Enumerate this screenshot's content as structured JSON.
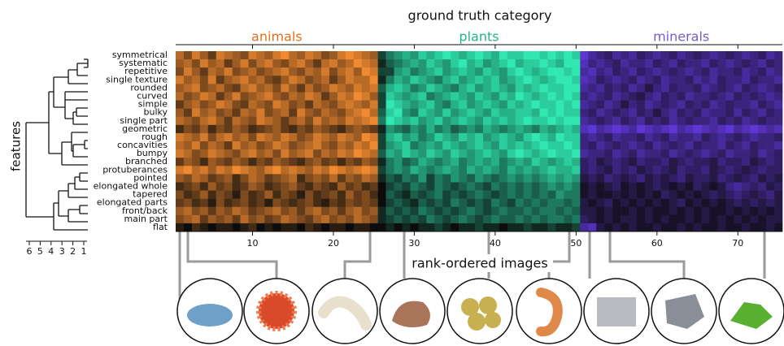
{
  "chart_data": {
    "type": "heatmap",
    "title": "ground truth category",
    "xlabel": "rank-ordered images",
    "ylabel": "features",
    "groups": [
      {
        "name": "animals",
        "color": "#f08a30",
        "label_color": "#e07020",
        "range": [
          0.5,
          25.5
        ]
      },
      {
        "name": "plants",
        "color": "#30e8b0",
        "label_color": "#1fb48c",
        "range": [
          25.5,
          50.5
        ]
      },
      {
        "name": "minerals",
        "color": "#6a3cf0",
        "label_color": "#7a5cc8",
        "range": [
          50.5,
          75.5
        ]
      }
    ],
    "xlim": [
      0.5,
      75.5
    ],
    "xticks": [
      10,
      20,
      30,
      40,
      50,
      60,
      70
    ],
    "rows": [
      "symmetrical",
      "systematic",
      "repetitive",
      "single texture",
      "rounded",
      "curved",
      "simple",
      "bulky",
      "single part",
      "geometric",
      "rough",
      "concavities",
      "bumpy",
      "branched",
      "protuberances",
      "pointed",
      "elongated whole",
      "tapered",
      "elongated parts",
      "front/back",
      "main part",
      "flat"
    ],
    "dendrogram": {
      "xlim": [
        6,
        1
      ],
      "xticks": [
        6,
        5,
        4,
        3,
        2,
        1
      ]
    },
    "values": [
      [
        7,
        5,
        8,
        6,
        4,
        8,
        7,
        6,
        5,
        8,
        7,
        6,
        8,
        9,
        7,
        6,
        8,
        7,
        5,
        6,
        8,
        9,
        8,
        7,
        6,
        3,
        5,
        6,
        7,
        6,
        8,
        7,
        8,
        9,
        8,
        7,
        8,
        9,
        8,
        7,
        9,
        8,
        8,
        9,
        9,
        8,
        9,
        8,
        9,
        8,
        8,
        6,
        5,
        4,
        6,
        5,
        6,
        4,
        5,
        6,
        5,
        4,
        6,
        5,
        4,
        5,
        6,
        5,
        4,
        5,
        6,
        5,
        4,
        6,
        5
      ],
      [
        6,
        7,
        5,
        8,
        6,
        7,
        4,
        6,
        8,
        5,
        7,
        8,
        6,
        5,
        7,
        8,
        6,
        4,
        7,
        8,
        6,
        7,
        9,
        8,
        7,
        2,
        4,
        5,
        6,
        7,
        6,
        8,
        7,
        6,
        8,
        9,
        7,
        8,
        6,
        7,
        8,
        9,
        7,
        8,
        8,
        9,
        8,
        7,
        9,
        9,
        7,
        5,
        6,
        5,
        4,
        6,
        5,
        5,
        6,
        4,
        5,
        6,
        4,
        5,
        5,
        6,
        4,
        5,
        6,
        5,
        4,
        5,
        6,
        4,
        5
      ],
      [
        5,
        8,
        6,
        4,
        7,
        6,
        8,
        5,
        6,
        7,
        5,
        6,
        7,
        8,
        6,
        5,
        7,
        6,
        8,
        5,
        7,
        8,
        6,
        9,
        8,
        3,
        3,
        6,
        7,
        5,
        6,
        7,
        8,
        6,
        7,
        8,
        7,
        6,
        8,
        7,
        6,
        8,
        9,
        8,
        7,
        8,
        9,
        9,
        8,
        9,
        6,
        7,
        5,
        6,
        4,
        5,
        6,
        4,
        5,
        6,
        5,
        4,
        5,
        6,
        5,
        4,
        6,
        5,
        5,
        4,
        6,
        5,
        4,
        6,
        5
      ],
      [
        8,
        6,
        7,
        5,
        8,
        4,
        6,
        7,
        8,
        6,
        7,
        5,
        4,
        6,
        8,
        7,
        5,
        6,
        7,
        4,
        6,
        8,
        7,
        7,
        9,
        2,
        5,
        7,
        6,
        8,
        7,
        6,
        5,
        7,
        8,
        6,
        7,
        8,
        7,
        8,
        6,
        7,
        8,
        9,
        8,
        7,
        8,
        9,
        9,
        8,
        7,
        6,
        4,
        5,
        6,
        5,
        4,
        6,
        5,
        4,
        6,
        5,
        5,
        4,
        6,
        5,
        6,
        4,
        5,
        5,
        6,
        4,
        5,
        5,
        6
      ],
      [
        6,
        7,
        8,
        5,
        6,
        7,
        5,
        4,
        7,
        8,
        6,
        7,
        5,
        8,
        6,
        4,
        7,
        5,
        6,
        8,
        7,
        6,
        8,
        7,
        8,
        4,
        7,
        8,
        7,
        5,
        6,
        8,
        7,
        6,
        5,
        7,
        8,
        6,
        7,
        8,
        7,
        6,
        8,
        7,
        8,
        9,
        8,
        8,
        9,
        9,
        6,
        5,
        6,
        4,
        5,
        4,
        6,
        5,
        3,
        5,
        6,
        4,
        5,
        5,
        4,
        6,
        5,
        4,
        5,
        6,
        4,
        5,
        6,
        5,
        4
      ],
      [
        7,
        5,
        6,
        8,
        7,
        4,
        6,
        8,
        5,
        6,
        7,
        8,
        6,
        5,
        7,
        6,
        8,
        7,
        4,
        6,
        8,
        7,
        9,
        8,
        6,
        3,
        8,
        7,
        6,
        7,
        8,
        5,
        6,
        7,
        8,
        7,
        6,
        8,
        7,
        6,
        8,
        7,
        9,
        8,
        7,
        8,
        9,
        8,
        9,
        8,
        5,
        6,
        5,
        4,
        6,
        5,
        4,
        3,
        5,
        6,
        4,
        5,
        4,
        6,
        5,
        5,
        4,
        5,
        6,
        4,
        5,
        4,
        5,
        6,
        5
      ],
      [
        4,
        6,
        7,
        5,
        6,
        8,
        7,
        5,
        4,
        7,
        6,
        5,
        8,
        7,
        5,
        6,
        4,
        7,
        6,
        5,
        7,
        8,
        7,
        6,
        8,
        3,
        9,
        8,
        7,
        6,
        7,
        8,
        6,
        5,
        7,
        8,
        6,
        7,
        8,
        7,
        6,
        8,
        7,
        8,
        9,
        8,
        8,
        9,
        8,
        9,
        6,
        5,
        4,
        6,
        5,
        3,
        5,
        4,
        6,
        5,
        4,
        5,
        6,
        4,
        5,
        4,
        6,
        5,
        4,
        5,
        5,
        6,
        4,
        5,
        6
      ],
      [
        6,
        4,
        8,
        6,
        7,
        5,
        6,
        4,
        7,
        6,
        8,
        5,
        6,
        7,
        4,
        8,
        6,
        5,
        7,
        6,
        5,
        7,
        8,
        9,
        7,
        4,
        8,
        9,
        6,
        5,
        8,
        7,
        6,
        8,
        6,
        7,
        8,
        7,
        6,
        8,
        7,
        7,
        8,
        8,
        7,
        9,
        8,
        9,
        8,
        8,
        5,
        4,
        6,
        5,
        4,
        5,
        6,
        4,
        5,
        3,
        5,
        6,
        4,
        5,
        4,
        6,
        5,
        5,
        4,
        6,
        4,
        5,
        6,
        4,
        5
      ],
      [
        7,
        6,
        5,
        7,
        8,
        6,
        4,
        7,
        6,
        5,
        8,
        7,
        6,
        4,
        6,
        7,
        5,
        8,
        6,
        7,
        6,
        8,
        7,
        8,
        9,
        5,
        9,
        8,
        7,
        8,
        6,
        7,
        8,
        6,
        7,
        8,
        7,
        6,
        8,
        7,
        8,
        7,
        8,
        9,
        8,
        8,
        9,
        8,
        9,
        9,
        6,
        5,
        4,
        5,
        6,
        4,
        5,
        6,
        4,
        5,
        4,
        6,
        5,
        4,
        5,
        5,
        6,
        4,
        5,
        4,
        6,
        5,
        4,
        5,
        5
      ],
      [
        3,
        5,
        4,
        6,
        3,
        5,
        4,
        6,
        5,
        3,
        4,
        5,
        6,
        4,
        3,
        5,
        4,
        6,
        5,
        4,
        3,
        5,
        6,
        5,
        4,
        2,
        6,
        5,
        4,
        6,
        5,
        7,
        5,
        6,
        4,
        5,
        6,
        5,
        7,
        6,
        5,
        6,
        7,
        6,
        5,
        7,
        6,
        7,
        8,
        7,
        7,
        8,
        6,
        7,
        8,
        7,
        6,
        8,
        7,
        6,
        7,
        8,
        6,
        7,
        8,
        7,
        6,
        7,
        8,
        6,
        7,
        8,
        7,
        6,
        7
      ],
      [
        8,
        7,
        6,
        8,
        5,
        7,
        8,
        6,
        7,
        5,
        8,
        7,
        6,
        8,
        7,
        5,
        6,
        8,
        7,
        6,
        8,
        7,
        6,
        9,
        8,
        3,
        7,
        8,
        6,
        7,
        5,
        6,
        8,
        7,
        6,
        8,
        7,
        8,
        6,
        7,
        8,
        7,
        6,
        8,
        9,
        8,
        7,
        9,
        8,
        8,
        5,
        6,
        5,
        4,
        6,
        5,
        5,
        4,
        6,
        5,
        4,
        6,
        5,
        5,
        6,
        4,
        5,
        6,
        5,
        4,
        5,
        6,
        5,
        5,
        4
      ],
      [
        7,
        6,
        8,
        5,
        7,
        6,
        4,
        8,
        6,
        7,
        5,
        6,
        8,
        7,
        5,
        6,
        7,
        8,
        6,
        5,
        7,
        6,
        8,
        7,
        9,
        3,
        6,
        7,
        8,
        5,
        6,
        7,
        6,
        8,
        7,
        6,
        7,
        8,
        7,
        6,
        8,
        7,
        8,
        7,
        8,
        9,
        8,
        8,
        9,
        8,
        5,
        4,
        6,
        5,
        4,
        5,
        6,
        5,
        4,
        6,
        5,
        4,
        5,
        6,
        4,
        5,
        5,
        6,
        4,
        5,
        6,
        4,
        5,
        5,
        6
      ],
      [
        8,
        7,
        5,
        6,
        8,
        7,
        6,
        5,
        7,
        8,
        6,
        7,
        5,
        8,
        6,
        7,
        8,
        5,
        7,
        6,
        8,
        7,
        9,
        8,
        7,
        4,
        7,
        6,
        8,
        7,
        6,
        8,
        7,
        6,
        8,
        7,
        6,
        7,
        8,
        7,
        6,
        8,
        9,
        8,
        7,
        8,
        9,
        8,
        8,
        9,
        6,
        5,
        5,
        4,
        6,
        5,
        4,
        6,
        5,
        5,
        4,
        6,
        5,
        4,
        5,
        6,
        5,
        4,
        6,
        5,
        5,
        4,
        6,
        5,
        4
      ],
      [
        4,
        6,
        5,
        3,
        6,
        5,
        4,
        6,
        5,
        3,
        5,
        4,
        6,
        5,
        4,
        3,
        5,
        6,
        4,
        5,
        3,
        5,
        4,
        6,
        5,
        2,
        5,
        6,
        4,
        5,
        7,
        6,
        5,
        6,
        7,
        5,
        6,
        7,
        6,
        7,
        5,
        6,
        7,
        6,
        8,
        7,
        6,
        7,
        8,
        7,
        4,
        5,
        3,
        4,
        5,
        4,
        3,
        5,
        4,
        4,
        5,
        3,
        4,
        5,
        4,
        4,
        3,
        5,
        4,
        4,
        5,
        3,
        4,
        5,
        4
      ],
      [
        8,
        9,
        7,
        8,
        6,
        8,
        7,
        9,
        8,
        7,
        6,
        8,
        9,
        7,
        8,
        7,
        6,
        8,
        7,
        9,
        8,
        7,
        8,
        9,
        8,
        3,
        5,
        6,
        5,
        7,
        6,
        5,
        6,
        7,
        6,
        5,
        7,
        6,
        7,
        6,
        5,
        7,
        6,
        7,
        6,
        7,
        8,
        7,
        7,
        8,
        4,
        5,
        4,
        3,
        5,
        4,
        5,
        3,
        4,
        5,
        4,
        3,
        5,
        4,
        4,
        5,
        3,
        4,
        5,
        4,
        3,
        4,
        5,
        4,
        4
      ],
      [
        6,
        5,
        7,
        6,
        4,
        5,
        6,
        3,
        5,
        7,
        6,
        4,
        5,
        6,
        7,
        3,
        5,
        6,
        5,
        7,
        4,
        6,
        5,
        7,
        6,
        2,
        4,
        3,
        5,
        4,
        6,
        3,
        5,
        4,
        6,
        5,
        4,
        6,
        5,
        4,
        5,
        6,
        5,
        6,
        5,
        6,
        7,
        6,
        7,
        6,
        3,
        4,
        3,
        5,
        4,
        3,
        4,
        5,
        3,
        4,
        3,
        4,
        5,
        3,
        4,
        4,
        3,
        5,
        4,
        3,
        4,
        5,
        3,
        4,
        3
      ],
      [
        3,
        4,
        5,
        3,
        6,
        4,
        5,
        3,
        4,
        6,
        5,
        3,
        4,
        5,
        6,
        4,
        3,
        5,
        4,
        3,
        6,
        4,
        5,
        3,
        4,
        1,
        3,
        4,
        3,
        5,
        4,
        3,
        5,
        4,
        3,
        4,
        5,
        4,
        3,
        5,
        4,
        5,
        4,
        5,
        4,
        5,
        6,
        5,
        6,
        5,
        2,
        3,
        2,
        3,
        4,
        2,
        3,
        2,
        3,
        4,
        3,
        2,
        3,
        2,
        4,
        3,
        2,
        3,
        5,
        6,
        5,
        4,
        5,
        3,
        4
      ],
      [
        5,
        3,
        4,
        6,
        3,
        5,
        4,
        2,
        5,
        3,
        4,
        6,
        3,
        5,
        4,
        2,
        5,
        3,
        4,
        5,
        3,
        6,
        4,
        5,
        3,
        1,
        4,
        3,
        2,
        4,
        3,
        4,
        5,
        3,
        4,
        3,
        4,
        5,
        4,
        3,
        4,
        5,
        4,
        5,
        4,
        5,
        4,
        6,
        5,
        5,
        2,
        3,
        2,
        2,
        3,
        2,
        3,
        2,
        3,
        2,
        4,
        3,
        2,
        3,
        2,
        3,
        4,
        3,
        4,
        5,
        4,
        3,
        4,
        5,
        3
      ],
      [
        4,
        5,
        3,
        4,
        2,
        5,
        3,
        4,
        5,
        3,
        4,
        2,
        5,
        4,
        3,
        4,
        5,
        3,
        2,
        4,
        3,
        5,
        4,
        5,
        4,
        1,
        3,
        4,
        3,
        2,
        4,
        3,
        4,
        3,
        5,
        4,
        3,
        4,
        3,
        5,
        4,
        3,
        5,
        4,
        5,
        4,
        5,
        5,
        4,
        5,
        3,
        2,
        3,
        4,
        2,
        3,
        2,
        3,
        2,
        3,
        2,
        3,
        4,
        2,
        3,
        2,
        3,
        2,
        3,
        4,
        3,
        4,
        3,
        4,
        3
      ],
      [
        6,
        7,
        5,
        6,
        4,
        6,
        5,
        7,
        6,
        4,
        5,
        6,
        7,
        5,
        6,
        4,
        6,
        7,
        5,
        6,
        4,
        6,
        7,
        5,
        6,
        2,
        4,
        3,
        4,
        3,
        5,
        4,
        3,
        4,
        3,
        4,
        5,
        4,
        3,
        4,
        5,
        4,
        4,
        5,
        4,
        5,
        5,
        4,
        5,
        4,
        3,
        3,
        2,
        3,
        2,
        2,
        3,
        2,
        3,
        2,
        2,
        3,
        2,
        3,
        2,
        3,
        2,
        2,
        3,
        2,
        3,
        2,
        3,
        2,
        3
      ],
      [
        5,
        6,
        7,
        4,
        6,
        5,
        6,
        4,
        7,
        5,
        6,
        4,
        5,
        7,
        6,
        5,
        4,
        6,
        7,
        5,
        6,
        5,
        7,
        6,
        5,
        2,
        3,
        4,
        3,
        4,
        3,
        5,
        4,
        3,
        4,
        5,
        4,
        3,
        4,
        5,
        4,
        4,
        5,
        4,
        5,
        4,
        5,
        5,
        4,
        5,
        4,
        3,
        2,
        3,
        2,
        3,
        3,
        2,
        3,
        2,
        3,
        2,
        2,
        3,
        2,
        3,
        2,
        3,
        2,
        3,
        2,
        3,
        2,
        3,
        3
      ],
      [
        2,
        1,
        3,
        2,
        1,
        2,
        2,
        1,
        2,
        3,
        1,
        2,
        1,
        2,
        2,
        1,
        3,
        2,
        1,
        2,
        2,
        1,
        2,
        2,
        1,
        1,
        2,
        1,
        2,
        1,
        2,
        2,
        3,
        2,
        1,
        2,
        2,
        3,
        2,
        2,
        1,
        2,
        2,
        3,
        2,
        2,
        3,
        2,
        2,
        3,
        6,
        7,
        3,
        2,
        3,
        2,
        3,
        2,
        2,
        3,
        2,
        2,
        3,
        2,
        3,
        2,
        2,
        3,
        2,
        2,
        3,
        2,
        2,
        3,
        2
      ]
    ]
  }
}
